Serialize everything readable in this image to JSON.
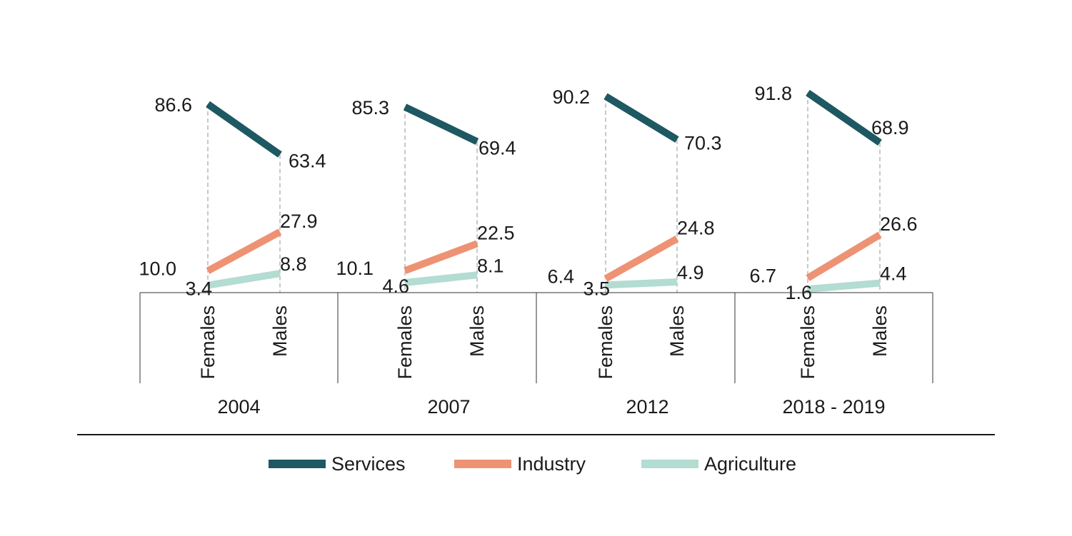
{
  "chart_data": {
    "type": "slope",
    "groups": [
      "2004",
      "2007",
      "2012",
      "2018 - 2019"
    ],
    "categories": [
      "Females",
      "Males"
    ],
    "series": [
      {
        "name": "Services",
        "color": "#1e5862",
        "values": [
          [
            86.6,
            63.4
          ],
          [
            85.3,
            69.4
          ],
          [
            90.2,
            70.3
          ],
          [
            91.8,
            68.9
          ]
        ],
        "labels": [
          [
            "86.6",
            "63.4"
          ],
          [
            "85.3",
            "69.4"
          ],
          [
            "90.2",
            "70.3"
          ],
          [
            "91.8",
            "68.9"
          ]
        ]
      },
      {
        "name": "Industry",
        "color": "#ee9274",
        "values": [
          [
            10.0,
            27.9
          ],
          [
            10.1,
            22.5
          ],
          [
            6.4,
            24.8
          ],
          [
            6.7,
            26.6
          ]
        ],
        "labels": [
          [
            "10.0",
            "27.9"
          ],
          [
            "10.1",
            "22.5"
          ],
          [
            "6.4",
            "24.8"
          ],
          [
            "6.7",
            "26.6"
          ]
        ]
      },
      {
        "name": "Agriculture",
        "color": "#b3dcd2",
        "values": [
          [
            3.4,
            8.8
          ],
          [
            4.6,
            8.1
          ],
          [
            3.5,
            4.9
          ],
          [
            1.6,
            4.4
          ]
        ],
        "labels": [
          [
            "3.4",
            "8.8"
          ],
          [
            "4.6",
            "8.1"
          ],
          [
            "3.5",
            "4.9"
          ],
          [
            "1.6",
            "4.4"
          ]
        ]
      }
    ],
    "legend_position": "bottom"
  }
}
